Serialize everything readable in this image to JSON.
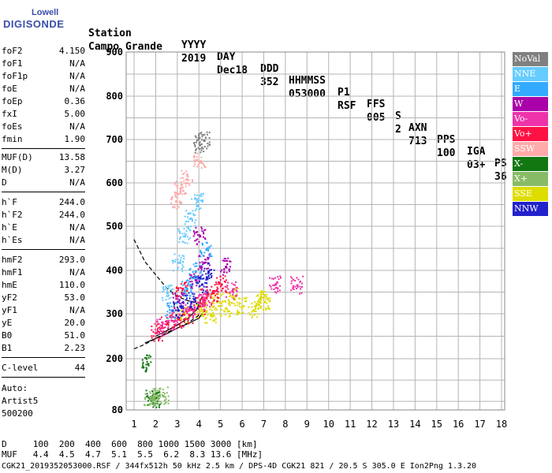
{
  "logo": {
    "line1": "Lowell",
    "line2": "DIGISONDE"
  },
  "header": {
    "row1": [
      "Station",
      "YYYY",
      "DAY",
      "DDD",
      "HHMMSS",
      "P1",
      "FFS",
      "S",
      "AXN",
      "PPS",
      "IGA",
      "PS"
    ],
    "row2": [
      "Campo Grande",
      "2019",
      "Dec18",
      "352",
      "053000",
      "RSF",
      "005",
      "2",
      "713",
      "100",
      "03+",
      "36"
    ]
  },
  "params": [
    {
      "k": "foF2",
      "v": "4.150"
    },
    {
      "k": "foF1",
      "v": "N/A"
    },
    {
      "k": "foF1p",
      "v": "N/A"
    },
    {
      "k": "foE",
      "v": "N/A"
    },
    {
      "k": "foEp",
      "v": "0.36"
    },
    {
      "k": "fxI",
      "v": "5.00"
    },
    {
      "k": "foEs",
      "v": "N/A"
    },
    {
      "k": "fmin",
      "v": "1.90"
    },
    {
      "k": "MUF(D)",
      "v": "13.58"
    },
    {
      "k": "M(D)",
      "v": "3.27"
    },
    {
      "k": "D",
      "v": "N/A"
    },
    {
      "k": "h`F",
      "v": "244.0"
    },
    {
      "k": "h`F2",
      "v": "244.0"
    },
    {
      "k": "h`E",
      "v": "N/A"
    },
    {
      "k": "h`Es",
      "v": "N/A"
    },
    {
      "k": "hmF2",
      "v": "293.0"
    },
    {
      "k": "hmF1",
      "v": "N/A"
    },
    {
      "k": "hmE",
      "v": "110.0"
    },
    {
      "k": "yF2",
      "v": "53.0"
    },
    {
      "k": "yF1",
      "v": "N/A"
    },
    {
      "k": "yE",
      "v": "20.0"
    },
    {
      "k": "B0",
      "v": "51.0"
    },
    {
      "k": "B1",
      "v": "2.23"
    },
    {
      "k": "C-level",
      "v": "44"
    }
  ],
  "auto": {
    "line1": "Auto:",
    "line2": "Artist5",
    "line3": "500200"
  },
  "legend": [
    {
      "label": "NoVal",
      "color": "#808080"
    },
    {
      "label": "NNE",
      "color": "#66ccff"
    },
    {
      "label": "E",
      "color": "#33aaff"
    },
    {
      "label": "W",
      "color": "#aa00aa"
    },
    {
      "label": "Vo-",
      "color": "#ee33aa"
    },
    {
      "label": "Vo+",
      "color": "#ff1144"
    },
    {
      "label": "SSW",
      "color": "#ffaaaa"
    },
    {
      "label": "X-",
      "color": "#117711"
    },
    {
      "label": "X+",
      "color": "#88bb66"
    },
    {
      "label": "SSE",
      "color": "#dddd00"
    },
    {
      "label": "NNW",
      "color": "#2222cc"
    }
  ],
  "bottom": {
    "d_row": "D     100  200  400  600  800 1000 1500 3000 [km]",
    "muf_row": "MUF   4.4  4.5  4.7  5.1  5.5  6.2  8.3 13.6 [MHz]",
    "footer": "CGK21_2019352053000.RSF / 344fx512h 50 kHz 2.5 km / DPS-4D CGK21 821 / 20.5 S 305.0 E Ion2Png 1.3.20"
  },
  "chart_data": {
    "type": "scatter",
    "xlim": [
      1,
      18
    ],
    "ylim": [
      80,
      900
    ],
    "x_ticks": [
      1,
      2,
      3,
      4,
      5,
      6,
      7,
      8,
      9,
      10,
      11,
      12,
      13,
      14,
      15,
      16,
      17,
      18
    ],
    "y_ticks": [
      80,
      200,
      300,
      400,
      500,
      600,
      700,
      800,
      900
    ],
    "grid": true,
    "series": [
      {
        "name": "SSE",
        "points": [
          [
            3.2,
            300
          ],
          [
            4.1,
            310
          ],
          [
            4.8,
            330
          ],
          [
            5.5,
            340
          ],
          [
            6.0,
            320
          ],
          [
            6.5,
            310
          ],
          [
            7.0,
            330
          ],
          [
            4.5,
            300
          ],
          [
            5.2,
            315
          ],
          [
            6.8,
            340
          ]
        ]
      },
      {
        "name": "Vo+",
        "points": [
          [
            2.0,
            260
          ],
          [
            2.5,
            280
          ],
          [
            3.0,
            290
          ],
          [
            3.5,
            300
          ],
          [
            4.0,
            320
          ],
          [
            4.3,
            340
          ],
          [
            3.2,
            360
          ],
          [
            4.6,
            350
          ],
          [
            5.0,
            370
          ]
        ]
      },
      {
        "name": "Vo-",
        "points": [
          [
            2.2,
            270
          ],
          [
            2.8,
            285
          ],
          [
            3.5,
            310
          ],
          [
            4.2,
            330
          ],
          [
            5.5,
            355
          ],
          [
            7.5,
            370
          ],
          [
            8.5,
            368
          ]
        ]
      },
      {
        "name": "W",
        "points": [
          [
            3.0,
            330
          ],
          [
            3.8,
            380
          ],
          [
            4.2,
            420
          ],
          [
            4.0,
            480
          ],
          [
            5.2,
            410
          ]
        ]
      },
      {
        "name": "NNE",
        "points": [
          [
            2.5,
            350
          ],
          [
            3.0,
            420
          ],
          [
            3.3,
            480
          ],
          [
            3.6,
            520
          ],
          [
            3.9,
            560
          ]
        ]
      },
      {
        "name": "E",
        "points": [
          [
            2.7,
            310
          ],
          [
            3.4,
            360
          ],
          [
            3.8,
            400
          ],
          [
            4.3,
            450
          ]
        ]
      },
      {
        "name": "SSW",
        "points": [
          [
            2.9,
            560
          ],
          [
            3.1,
            590
          ],
          [
            3.4,
            610
          ],
          [
            4.0,
            650
          ]
        ]
      },
      {
        "name": "NNW",
        "points": [
          [
            3.0,
            310
          ],
          [
            3.6,
            330
          ],
          [
            4.1,
            370
          ],
          [
            4.4,
            400
          ]
        ]
      },
      {
        "name": "X-",
        "points": [
          [
            1.6,
            190
          ],
          [
            1.8,
            110
          ],
          [
            1.9,
            108
          ]
        ]
      },
      {
        "name": "X+",
        "points": [
          [
            1.7,
            112
          ],
          [
            1.9,
            113
          ],
          [
            2.3,
            115
          ]
        ]
      },
      {
        "name": "NoVal",
        "points": [
          [
            4.0,
            690
          ],
          [
            4.2,
            700
          ]
        ]
      }
    ],
    "trace_curves": [
      {
        "name": "dashed",
        "x": [
          1.0,
          1.5,
          2.0,
          2.5,
          3.0,
          3.5,
          4.0
        ],
        "y": [
          470,
          420,
          390,
          360,
          340,
          330,
          325
        ]
      },
      {
        "name": "dashed-lower",
        "x": [
          1.0,
          1.5,
          2.0,
          2.5,
          3.0,
          3.5,
          4.1
        ],
        "y": [
          222,
          232,
          245,
          258,
          268,
          280,
          300
        ]
      },
      {
        "name": "solid-1",
        "x": [
          1.5,
          2.0,
          2.5,
          3.0,
          3.5,
          4.0,
          4.15
        ],
        "y": [
          235,
          245,
          255,
          268,
          278,
          290,
          300
        ]
      },
      {
        "name": "solid-2",
        "x": [
          2.0,
          2.5,
          3.0,
          3.5,
          3.9,
          4.15
        ],
        "y": [
          250,
          262,
          275,
          290,
          310,
          340
        ]
      }
    ]
  }
}
